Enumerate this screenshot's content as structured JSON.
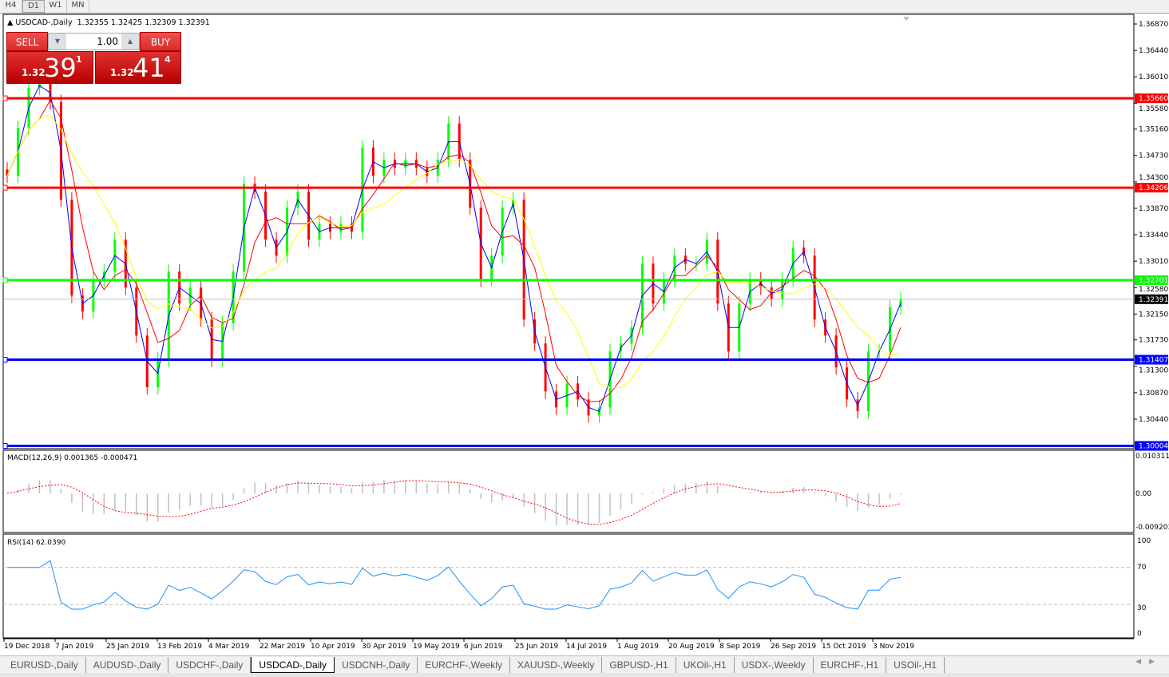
{
  "timeframes": [
    "H4",
    "D1",
    "W1",
    "MN"
  ],
  "active_timeframe": "D1",
  "chart": {
    "title": "USDCAD-,Daily",
    "ohlc": "1.32355 1.32425 1.32309 1.32391"
  },
  "trade_panel": {
    "sell_label": "SELL",
    "buy_label": "BUY",
    "lot": "1.00",
    "sell_price": {
      "prefix": "1.32",
      "big": "39",
      "sup": "1"
    },
    "buy_price": {
      "prefix": "1.32",
      "big": "41",
      "sup": "4"
    }
  },
  "price_axis": {
    "ticks": [
      "1.36870",
      "1.36440",
      "1.36010",
      "1.35580",
      "1.35160",
      "1.34730",
      "1.34300",
      "1.33870",
      "1.33440",
      "1.33010",
      "1.32580",
      "1.32150",
      "1.31730",
      "1.31300",
      "1.30870",
      "1.30440"
    ],
    "max": 1.3687,
    "min": 1.3
  },
  "levels": [
    {
      "price": "1.35660",
      "color": "#ff0000"
    },
    {
      "price": "1.34206",
      "color": "#ff0000"
    },
    {
      "price": "1.32701",
      "color": "#00ff00"
    },
    {
      "price": "1.31407",
      "color": "#0000ff"
    },
    {
      "price": "1.30004",
      "color": "#0000ff"
    }
  ],
  "current_price": "1.32391",
  "macd": {
    "label": "MACD(12,26,9) 0.001365 -0.000471",
    "ticks": [
      "0.010311",
      "0.00",
      "-0.009203"
    ]
  },
  "rsi": {
    "label": "RSI(14) 62.0390",
    "ticks": [
      "100",
      "70",
      "30",
      "0"
    ]
  },
  "dates": [
    "19 Dec 2018",
    "7 Jan 2019",
    "25 Jan 2019",
    "13 Feb 2019",
    "4 Mar 2019",
    "22 Mar 2019",
    "10 Apr 2019",
    "30 Apr 2019",
    "19 May 2019",
    "6 Jun 2019",
    "25 Jun 2019",
    "14 Jul 2019",
    "1 Aug 2019",
    "20 Aug 2019",
    "8 Sep 2019",
    "26 Sep 2019",
    "15 Oct 2019",
    "3 Nov 2019"
  ],
  "colors": {
    "bull": "#00ff00",
    "bear": "#ff0000",
    "ma_fast": "#0000ff",
    "ma_mid": "#ff0000",
    "ma_slow": "#ffff00"
  },
  "chart_data": {
    "type": "candlestick",
    "closes": [
      1.344,
      1.3518,
      1.3583,
      1.359,
      1.356,
      1.3401,
      1.3245,
      1.3219,
      1.3271,
      1.3284,
      1.3336,
      1.3258,
      1.318,
      1.3096,
      1.3141,
      1.3284,
      1.3232,
      1.3258,
      1.3206,
      1.3141,
      1.32,
      1.3284,
      1.3427,
      1.3414,
      1.3336,
      1.331,
      1.3388,
      1.3414,
      1.3336,
      1.3362,
      1.3349,
      1.3362,
      1.3349,
      1.3486,
      1.344,
      1.3466,
      1.3453,
      1.3466,
      1.3453,
      1.344,
      1.3466,
      1.3525,
      1.3466,
      1.3388,
      1.3271,
      1.331,
      1.3388,
      1.3401,
      1.3206,
      1.3167,
      1.3089,
      1.3063,
      1.3102,
      1.3076,
      1.305,
      1.3063,
      1.3154,
      1.3167,
      1.3193,
      1.3297,
      1.3232,
      1.3271,
      1.331,
      1.3297,
      1.3297,
      1.3336,
      1.3232,
      1.3154,
      1.3232,
      1.3271,
      1.3258,
      1.3239,
      1.3271,
      1.3323,
      1.331,
      1.3206,
      1.318,
      1.3128,
      1.3076,
      1.3057,
      1.3154,
      1.3154,
      1.3226,
      1.3239
    ],
    "ylim": [
      1.3,
      1.3687
    ]
  },
  "symbol_tabs": [
    "EURUSD-,Daily",
    "AUDUSD-,Daily",
    "USDCHF-,Daily",
    "USDCAD-,Daily",
    "USDCNH-,Daily",
    "EURCHF-,Weekly",
    "XAUUSD-,Weekly",
    "GBPUSD-,H1",
    "UKOil-,H1",
    "USDX-,Weekly",
    "EURCHF-,H1",
    "USOil-,H1"
  ],
  "active_tab": "USDCAD-,Daily"
}
